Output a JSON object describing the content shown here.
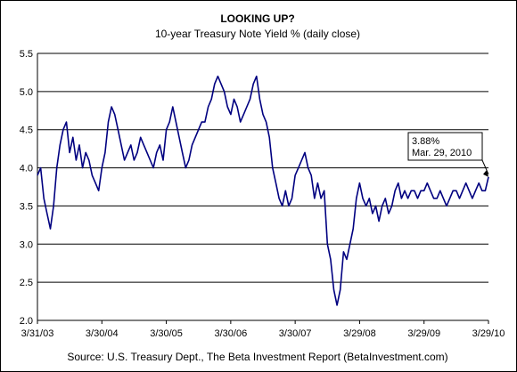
{
  "chart_data": {
    "type": "line",
    "title": "LOOKING UP?",
    "subtitle": "10-year Treasury Note Yield % (daily close)",
    "source": "Source: U.S. Treasury Dept., The Beta Investment Report (BetaInvestment.com)",
    "ylim": [
      2.0,
      5.5
    ],
    "yticks": [
      "2.0",
      "2.5",
      "3.0",
      "3.5",
      "4.0",
      "4.5",
      "5.0",
      "5.5"
    ],
    "xticks": [
      "3/31/03",
      "3/30/04",
      "3/30/05",
      "3/30/06",
      "3/30/07",
      "3/29/08",
      "3/29/09",
      "3/29/10"
    ],
    "grid": "horizontal",
    "line_color": "#000080",
    "annotation": {
      "line1": "3.88%",
      "line2": "Mar. 29, 2010"
    },
    "series": [
      {
        "x": [
          0,
          0.05,
          0.1,
          0.15,
          0.2,
          0.25,
          0.3,
          0.35,
          0.4,
          0.45,
          0.5,
          0.55,
          0.6,
          0.65,
          0.7,
          0.75,
          0.8,
          0.85,
          0.9,
          0.95,
          1.0,
          1.05,
          1.1,
          1.15,
          1.2,
          1.25,
          1.3,
          1.35,
          1.4,
          1.45,
          1.5,
          1.55,
          1.6,
          1.65,
          1.7,
          1.75,
          1.8,
          1.85,
          1.9,
          1.95,
          2.0,
          2.05,
          2.1,
          2.15,
          2.2,
          2.25,
          2.3,
          2.35,
          2.4,
          2.45,
          2.5,
          2.55,
          2.6,
          2.65,
          2.7,
          2.75,
          2.8,
          2.85,
          2.9,
          2.95,
          3.0,
          3.05,
          3.1,
          3.15,
          3.2,
          3.25,
          3.3,
          3.35,
          3.4,
          3.45,
          3.5,
          3.55,
          3.6,
          3.65,
          3.7,
          3.75,
          3.8,
          3.85,
          3.9,
          3.95,
          4.0,
          4.05,
          4.1,
          4.15,
          4.2,
          4.25,
          4.3,
          4.35,
          4.4,
          4.45,
          4.5,
          4.55,
          4.6,
          4.65,
          4.7,
          4.75,
          4.8,
          4.85,
          4.9,
          4.95,
          5.0,
          5.05,
          5.1,
          5.15,
          5.2,
          5.25,
          5.3,
          5.35,
          5.4,
          5.45,
          5.5,
          5.55,
          5.6,
          5.65,
          5.7,
          5.75,
          5.8,
          5.85,
          5.9,
          5.95,
          6.0,
          6.05,
          6.1,
          6.15,
          6.2,
          6.25,
          6.3,
          6.35,
          6.4,
          6.45,
          6.5,
          6.55,
          6.6,
          6.65,
          6.7,
          6.75,
          6.8,
          6.85,
          6.9,
          6.95,
          7.0
        ],
        "values": [
          3.9,
          4.0,
          3.6,
          3.4,
          3.2,
          3.5,
          4.0,
          4.3,
          4.5,
          4.6,
          4.2,
          4.4,
          4.1,
          4.3,
          4.0,
          4.2,
          4.1,
          3.9,
          3.8,
          3.7,
          4.0,
          4.2,
          4.6,
          4.8,
          4.7,
          4.5,
          4.3,
          4.1,
          4.2,
          4.3,
          4.1,
          4.2,
          4.4,
          4.3,
          4.2,
          4.1,
          4.0,
          4.2,
          4.3,
          4.1,
          4.5,
          4.6,
          4.8,
          4.6,
          4.4,
          4.2,
          4.0,
          4.1,
          4.3,
          4.4,
          4.5,
          4.6,
          4.6,
          4.8,
          4.9,
          5.1,
          5.2,
          5.1,
          5.0,
          4.8,
          4.7,
          4.9,
          4.8,
          4.6,
          4.7,
          4.8,
          4.9,
          5.1,
          5.2,
          4.9,
          4.7,
          4.6,
          4.4,
          4.0,
          3.8,
          3.6,
          3.5,
          3.7,
          3.5,
          3.6,
          3.9,
          4.0,
          4.1,
          4.2,
          4.0,
          3.9,
          3.6,
          3.8,
          3.6,
          3.7,
          3.0,
          2.8,
          2.4,
          2.2,
          2.4,
          2.9,
          2.8,
          3.0,
          3.2,
          3.6,
          3.8,
          3.6,
          3.5,
          3.6,
          3.4,
          3.5,
          3.3,
          3.5,
          3.6,
          3.4,
          3.5,
          3.7,
          3.8,
          3.6,
          3.7,
          3.6,
          3.7,
          3.7,
          3.6,
          3.7,
          3.7,
          3.8,
          3.7,
          3.6,
          3.6,
          3.7,
          3.6,
          3.5,
          3.6,
          3.7,
          3.7,
          3.6,
          3.7,
          3.8,
          3.7,
          3.6,
          3.7,
          3.8,
          3.7,
          3.7,
          3.88
        ]
      }
    ]
  }
}
